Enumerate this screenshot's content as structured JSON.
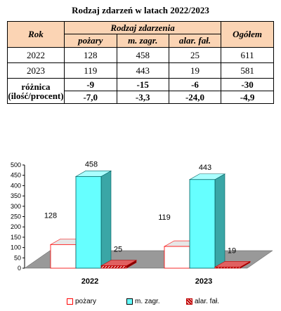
{
  "title": "Rodzaj zdarzeń w latach 2022/2023",
  "table": {
    "rok_header": "Rok",
    "group_header": "Rodzaj zdarzenia",
    "total_header": "Ogółem",
    "columns": [
      "pożary",
      "m. zagr.",
      "alar. fał."
    ],
    "rows": [
      {
        "label": "2022",
        "values": [
          "128",
          "458",
          "25"
        ],
        "total": "611"
      },
      {
        "label": "2023",
        "values": [
          "119",
          "443",
          "19"
        ],
        "total": "581"
      }
    ],
    "diff_label_1": "różnica",
    "diff_label_2": "(ilość/procent)",
    "diff_count": {
      "values": [
        "-9",
        "-15",
        "-6"
      ],
      "total": "-30"
    },
    "diff_percent": {
      "values": [
        "-7,0",
        "-3,3",
        "-24,0"
      ],
      "total": "-4,9"
    }
  },
  "colors": {
    "header_bg": "#fbd4b4",
    "pozary": "#ffffff",
    "pozary_border": "#ff0000",
    "m_zagr": "#66ffff",
    "alar_fal": "#c00000",
    "floor": "#999999"
  },
  "chart_data": {
    "type": "bar",
    "categories": [
      "2022",
      "2023"
    ],
    "series": [
      {
        "name": "pożary",
        "values": [
          128,
          119
        ]
      },
      {
        "name": "m. zagr.",
        "values": [
          458,
          443
        ]
      },
      {
        "name": "alar. fał.",
        "values": [
          25,
          19
        ]
      }
    ],
    "yticks": [
      "0",
      "50",
      "100",
      "150",
      "200",
      "250",
      "300",
      "350",
      "400",
      "450",
      "500"
    ],
    "ylim": [
      0,
      500
    ],
    "legend_position": "bottom",
    "grid": false
  }
}
